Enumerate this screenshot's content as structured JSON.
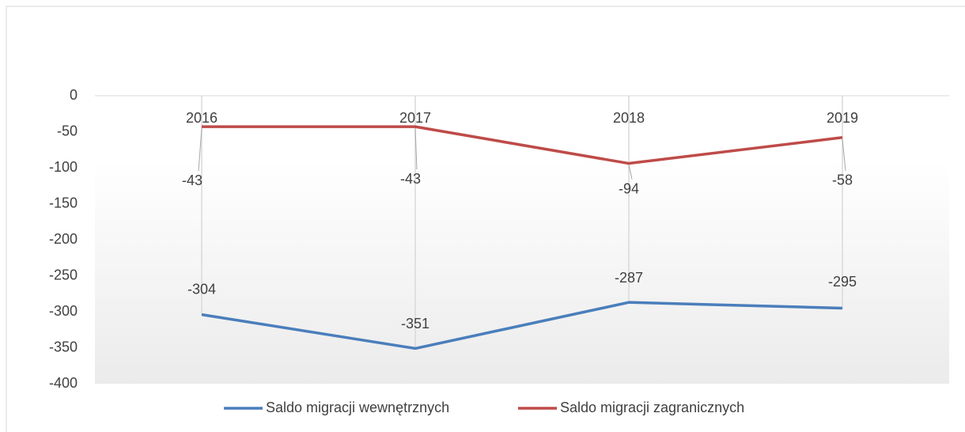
{
  "chart_data": {
    "type": "line",
    "categories": [
      "2016",
      "2017",
      "2018",
      "2019"
    ],
    "series": [
      {
        "name": "Saldo migracji wewnętrznych",
        "color": "#4a7ebb",
        "values": [
          -304,
          -351,
          -287,
          -295
        ]
      },
      {
        "name": "Saldo migracji zagranicznych",
        "color": "#be4b48",
        "values": [
          -43,
          -43,
          -94,
          -58
        ]
      }
    ],
    "ylim": [
      -400,
      0
    ],
    "yticks": [
      0,
      -50,
      -100,
      -150,
      -200,
      -250,
      -300,
      -350,
      -400
    ],
    "grid": false,
    "legend": "bottom"
  }
}
